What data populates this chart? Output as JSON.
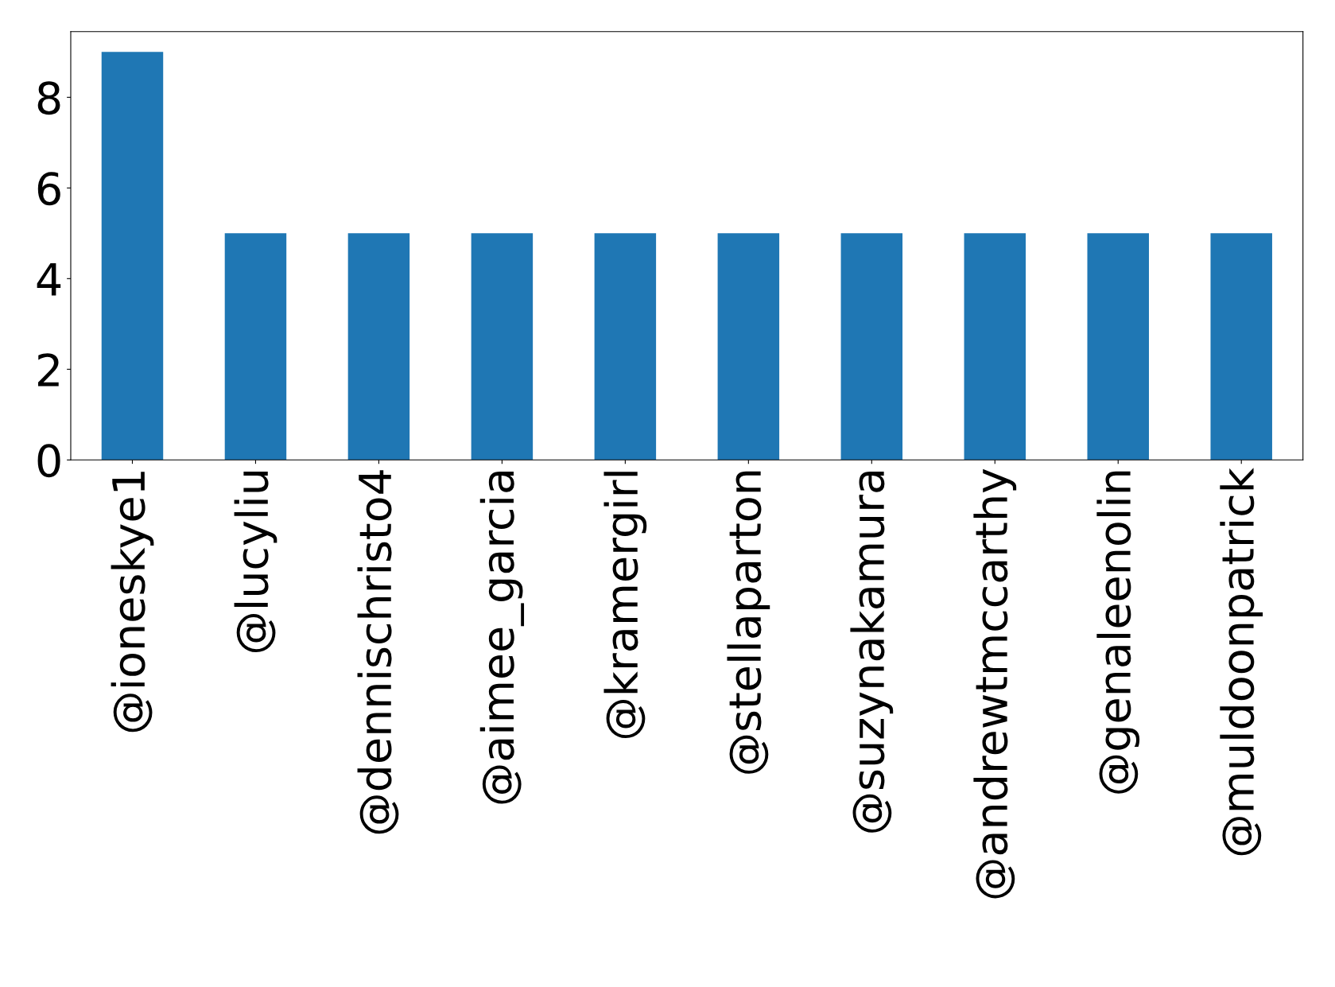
{
  "chart_data": {
    "type": "bar",
    "categories": [
      "@ioneskye1",
      "@lucyliu",
      "@dennischristo4",
      "@aimee_garcia",
      "@kramergirl",
      "@stellaparton",
      "@suzynakamura",
      "@andrewtmccarthy",
      "@genaleenolin",
      "@muldoonpatrick"
    ],
    "values": [
      9,
      5,
      5,
      5,
      5,
      5,
      5,
      5,
      5,
      5
    ],
    "color": "#1f77b4",
    "ylim": [
      0,
      9.45
    ],
    "yticks": [
      0,
      2,
      4,
      6,
      8
    ],
    "grid": false,
    "legend": false
  }
}
